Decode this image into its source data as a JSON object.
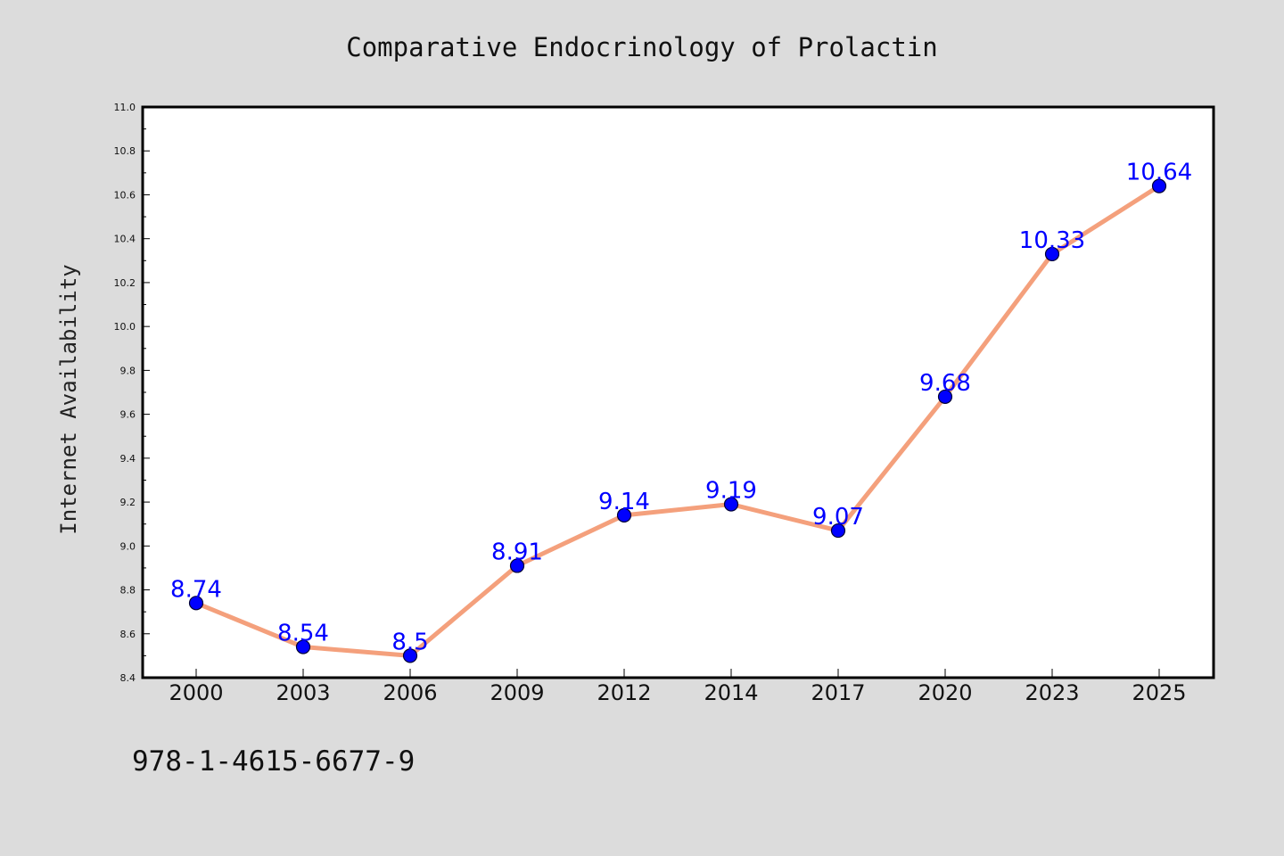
{
  "chart_data": {
    "type": "line",
    "title": "Comparative Endocrinology of Prolactin",
    "xlabel": "",
    "ylabel": "Internet Availability",
    "categories": [
      "2000",
      "2003",
      "2006",
      "2009",
      "2012",
      "2014",
      "2017",
      "2020",
      "2023",
      "2025"
    ],
    "series": [
      {
        "values": [
          8.74,
          8.54,
          8.5,
          8.91,
          9.14,
          9.19,
          9.07,
          9.68,
          10.33,
          10.64
        ],
        "data_labels": [
          "8.74",
          "8.54",
          "8.5",
          "8.91",
          "9.14",
          "9.19",
          "9.07",
          "9.68",
          "10.33",
          "10.64"
        ]
      }
    ],
    "ylim": [
      8.4,
      11.0
    ],
    "yticks": [
      "8.4",
      "8.6",
      "8.8",
      "9.0",
      "9.2",
      "9.4",
      "9.6",
      "9.8",
      "10.0",
      "10.2",
      "10.4",
      "10.6",
      "10.8",
      "11.0"
    ],
    "grid": false,
    "legend": "none",
    "colors": {
      "line": "#f4a07c",
      "marker": "#0000ff",
      "data_label": "#0000ff",
      "background": "#dcdcdc",
      "plot_area": "#ffffff"
    }
  },
  "footer": {
    "isbn": "978-1-4615-6677-9"
  }
}
